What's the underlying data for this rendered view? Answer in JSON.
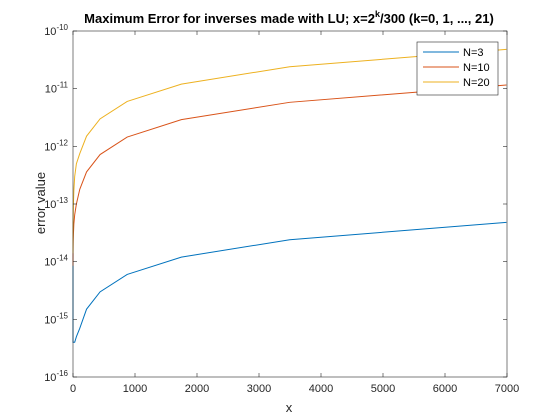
{
  "chart_data": {
    "type": "line",
    "title": {
      "main": "Maximum Error for inverses made with LU; x=2",
      "sup": "k",
      "rest": "/300 (k=0, 1, ..., 21)"
    },
    "xlabel": "x",
    "ylabel": "error value",
    "xlim": [
      0,
      7000
    ],
    "ylim": [
      1e-16,
      1e-10
    ],
    "yscale": "log",
    "x_ticks": [
      0,
      1000,
      2000,
      3000,
      4000,
      5000,
      6000,
      7000
    ],
    "x_tick_labels": [
      "0",
      "1000",
      "2000",
      "3000",
      "4000",
      "5000",
      "6000",
      "7000"
    ],
    "y_tick_exponents": [
      -16,
      -15,
      -14,
      -13,
      -12,
      -11,
      -10
    ],
    "y_tick_base": "10",
    "grid": false,
    "legend_position": "top-right",
    "x": [
      0.00333,
      0.00667,
      0.0133,
      0.0267,
      0.0533,
      0.107,
      0.213,
      0.427,
      0.853,
      1.71,
      3.41,
      6.83,
      13.65,
      27.31,
      54.61,
      109.2,
      218.5,
      436.9,
      873.8,
      1747.6,
      3495.3,
      6990.5
    ],
    "series": [
      {
        "name": "N=3",
        "color": "#0072BD",
        "values": [
          1.1e-14,
          6e-15,
          1.5e-15,
          8e-16,
          5e-16,
          4e-16,
          4e-16,
          4e-16,
          4e-16,
          4e-16,
          4e-16,
          4e-16,
          4e-16,
          4e-16,
          5e-16,
          7e-16,
          1.5e-15,
          3e-15,
          6e-15,
          1.2e-14,
          2.4e-14,
          4.8e-14
        ]
      },
      {
        "name": "N=10",
        "color": "#D95319",
        "values": [
          1.1e-14,
          9e-15,
          8.5e-15,
          8.5e-15,
          9e-15,
          1e-14,
          1.1e-14,
          1.3e-14,
          1.5e-14,
          1.8e-14,
          2.3e-14,
          3e-14,
          4.5e-14,
          6.5e-14,
          1e-13,
          1.8e-13,
          3.6e-13,
          7.2e-13,
          1.45e-12,
          2.9e-12,
          5.8e-12,
          1.16e-11
        ]
      },
      {
        "name": "N=20",
        "color": "#EDB120",
        "values": [
          1.8e-14,
          1.5e-14,
          1.4e-14,
          1.5e-14,
          1.8e-14,
          2.2e-14,
          2.5e-14,
          3e-14,
          3.5e-14,
          4.5e-14,
          6.5e-14,
          1e-13,
          1.7e-13,
          3e-13,
          5e-13,
          7.5e-13,
          1.5e-12,
          3e-12,
          6e-12,
          1.2e-11,
          2.4e-11,
          4.8e-11
        ]
      }
    ]
  }
}
